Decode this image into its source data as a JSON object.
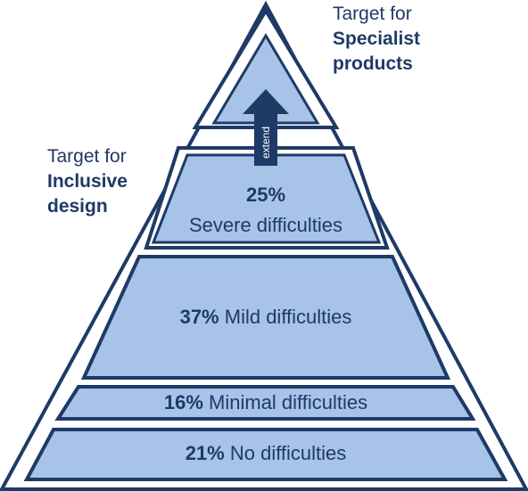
{
  "labels": {
    "specialist": {
      "line1": "Target for",
      "line2": "Specialist",
      "line3": "products"
    },
    "inclusive": {
      "line1": "Target for",
      "line2": "Inclusive",
      "line3": "design"
    },
    "arrow": "extend"
  },
  "tiers": [
    {
      "percent": "25%",
      "description": "Severe difficulties"
    },
    {
      "percent": "37%",
      "description": "Mild difficulties"
    },
    {
      "percent": "16%",
      "description": "Minimal difficulties"
    },
    {
      "percent": "21%",
      "description": "No difficulties"
    }
  ],
  "colors": {
    "outline": "#1e3a66",
    "fill": "#a7c3e8",
    "arrow": "#1e3a66",
    "text": "#1e3a66",
    "background": "#ffffff"
  }
}
